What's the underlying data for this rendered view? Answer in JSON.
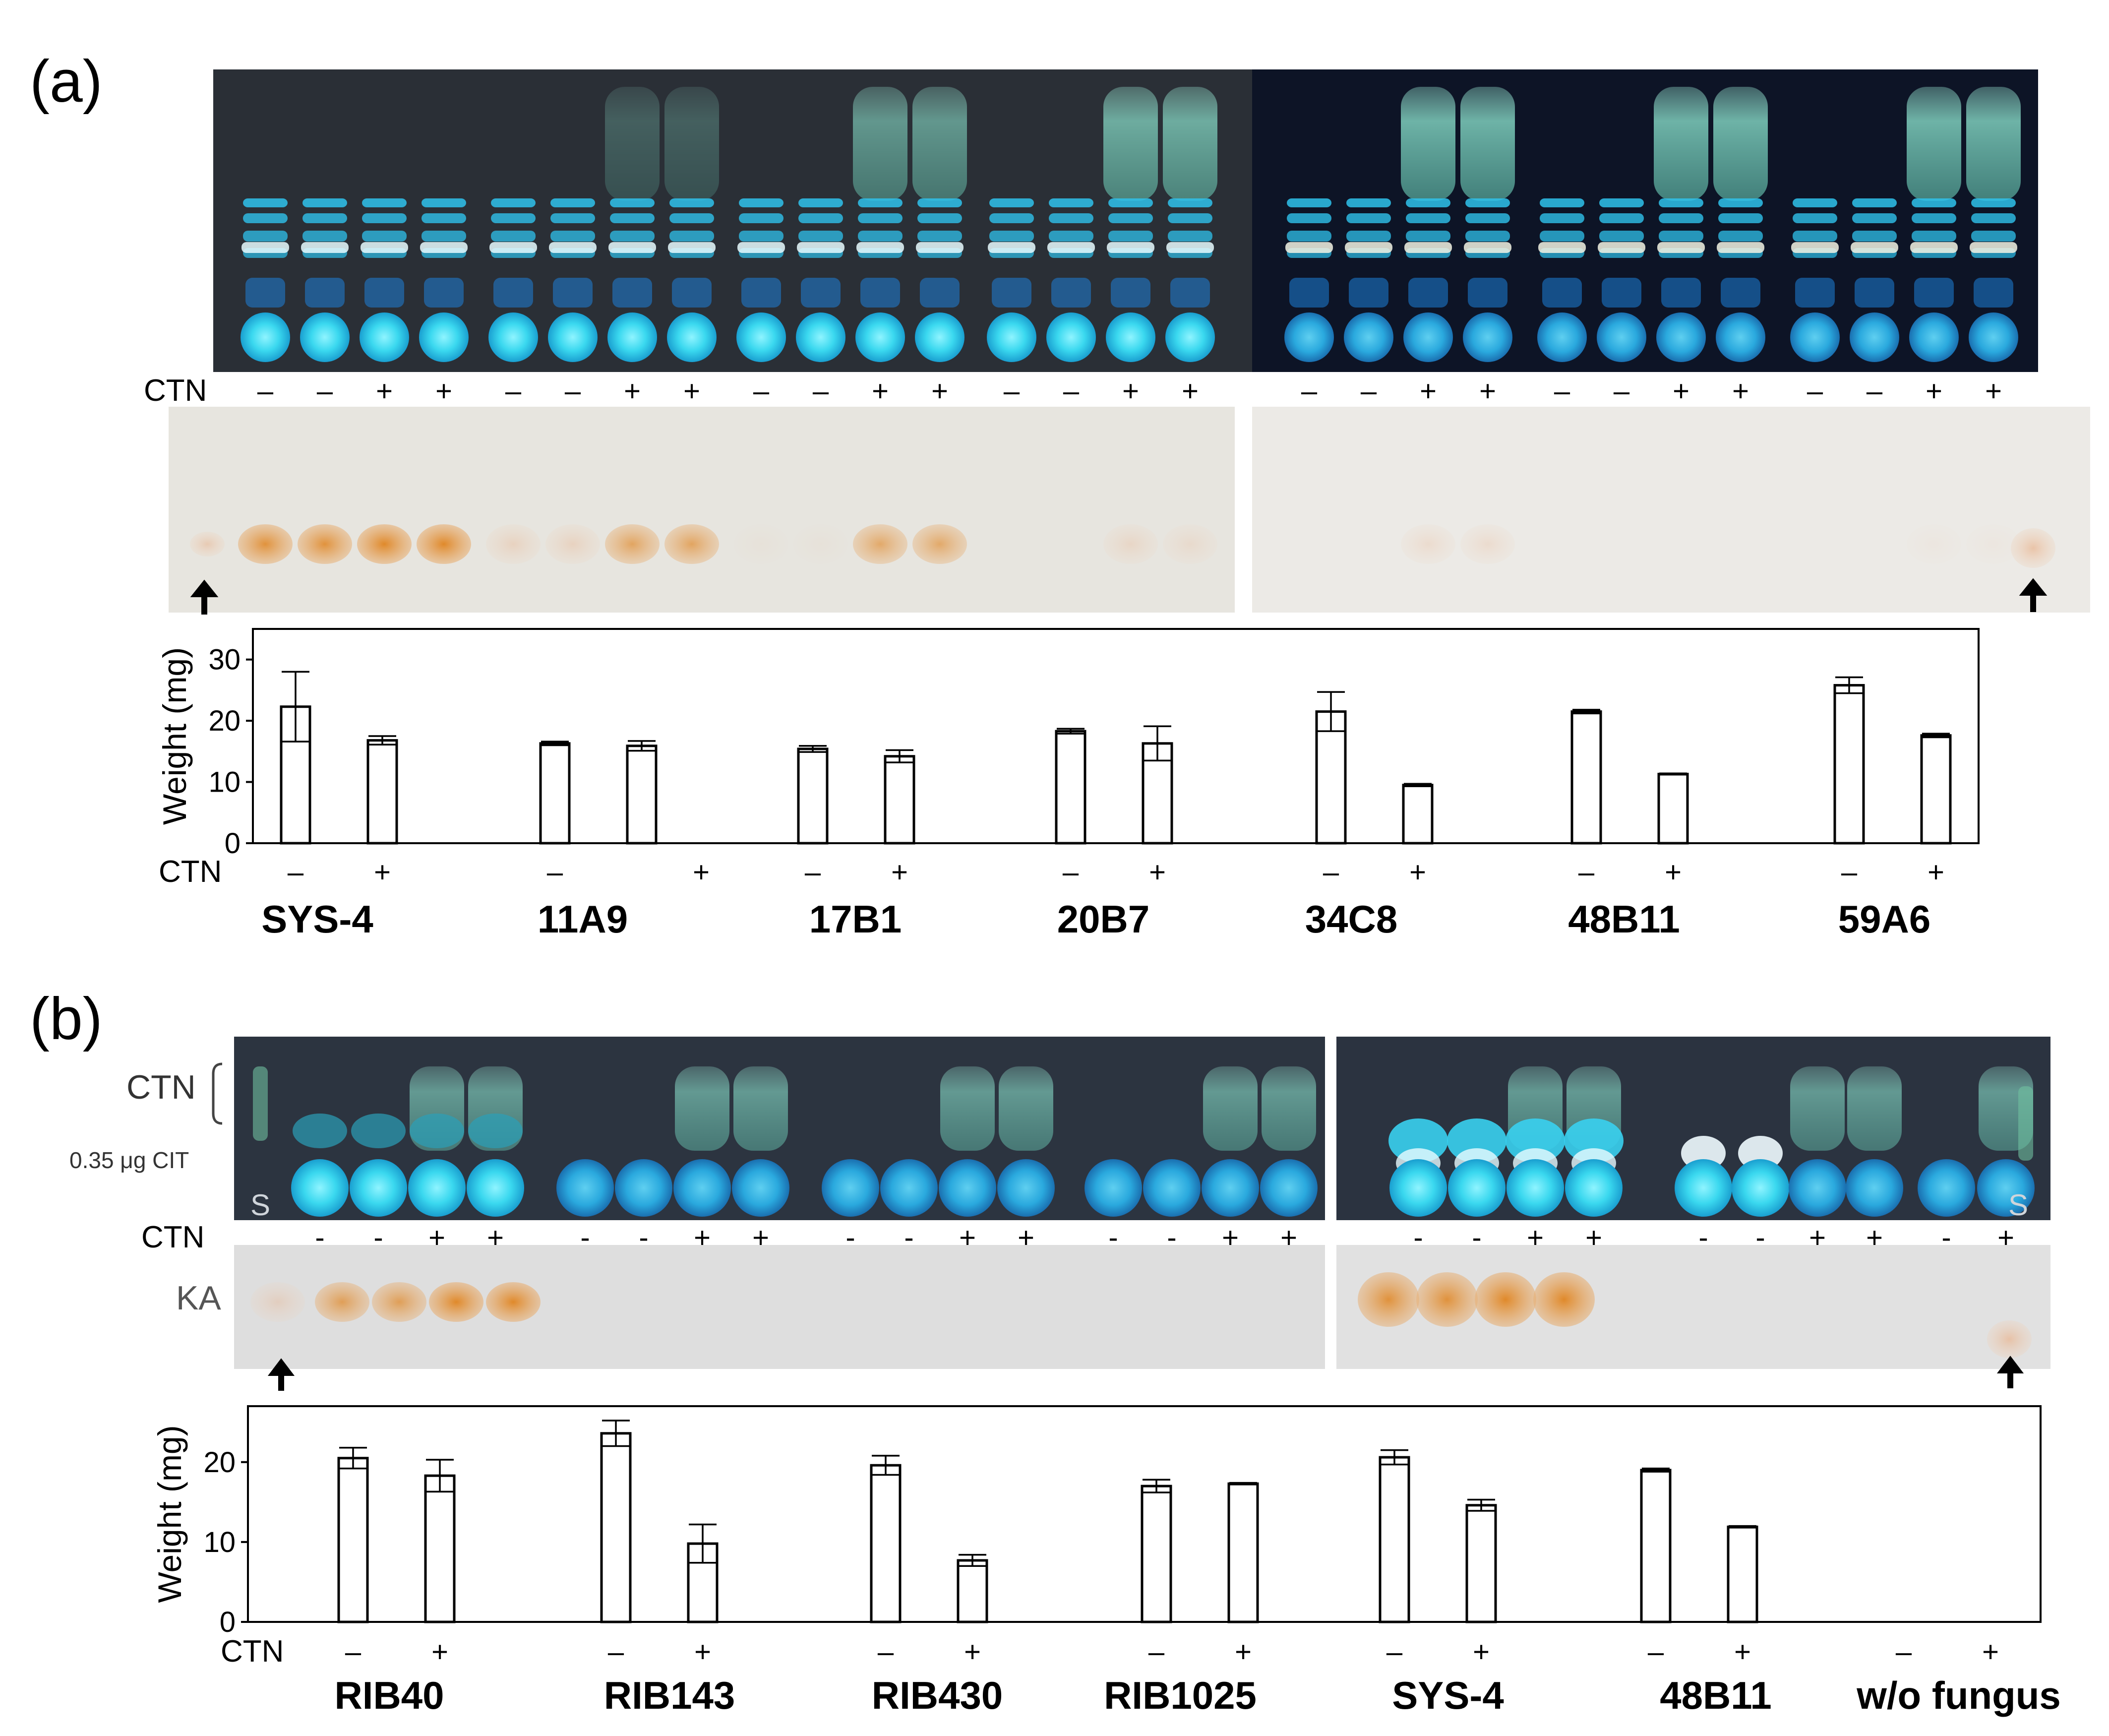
{
  "panel_a": {
    "label": "(a)",
    "ctn_label": "CTN",
    "tlc_lane_signs": [
      "–",
      "–",
      "+",
      "+",
      "–",
      "–",
      "+",
      "+",
      "–",
      "–",
      "+",
      "+",
      "–",
      "–",
      "+",
      "+",
      "–",
      "–",
      "+",
      "+",
      "–",
      "–",
      "+",
      "+",
      "–",
      "–",
      "+",
      "+"
    ],
    "colors": {
      "uv_plate": "#1c2430",
      "uv_spot": "#38d8f0",
      "ctn_smear": "#7fe0c8",
      "white_plate": "#e6e3dc",
      "ka_spot": "#d9882f"
    }
  },
  "panel_b": {
    "label": "(b)",
    "ctn_label": "CTN",
    "ctn_bracket_label": "CTN",
    "cit_label": "0.35 μg CIT",
    "standard_label": "S",
    "ka_label": "KA",
    "tlc_lane_signs": [
      "-",
      "-",
      "+",
      "+",
      "-",
      "-",
      "+",
      "+",
      "-",
      "-",
      "+",
      "+",
      "-",
      "-",
      "+",
      "+",
      "-",
      "-",
      "+",
      "+",
      "-",
      "-",
      "+",
      "+",
      "-",
      "+"
    ]
  },
  "chart_data": [
    {
      "type": "bar",
      "panel": "(a)",
      "ylabel": "Weight (mg)",
      "ylim": [
        0,
        35
      ],
      "yticks": [
        0,
        10,
        20,
        30
      ],
      "condition_label": "CTN",
      "categories": [
        "SYS-4",
        "11A9",
        "17B1",
        "20B7",
        "34C8",
        "48B11",
        "59A6"
      ],
      "series": [
        {
          "name": "–",
          "values": [
            22.3,
            16.3,
            15.4,
            18.3,
            21.5,
            21.5,
            25.8
          ],
          "errors": [
            5.7,
            0.3,
            0.5,
            0.4,
            3.2,
            0.3,
            1.3
          ]
        },
        {
          "name": "+",
          "values": [
            16.8,
            15.9,
            14.2,
            16.3,
            9.5,
            11.3,
            17.6
          ],
          "errors": [
            0.7,
            0.8,
            1.0,
            2.8,
            0.2,
            0.1,
            0.3
          ]
        }
      ],
      "condition_signs_below": [
        [
          "–",
          "+"
        ],
        [
          "–",
          "+"
        ],
        [
          "–",
          "+"
        ],
        [
          "–",
          "+"
        ],
        [
          "–",
          "+"
        ],
        [
          "–",
          "+"
        ],
        [
          "–",
          "+"
        ]
      ],
      "grid": false
    },
    {
      "type": "bar",
      "panel": "(b)",
      "ylabel": "Weight (mg)",
      "ylim": [
        0,
        27
      ],
      "yticks": [
        0,
        10,
        20
      ],
      "condition_label": "CTN",
      "categories": [
        "RIB40",
        "RIB143",
        "RIB430",
        "RIB1025",
        "SYS-4",
        "48B11",
        "w/o fungus"
      ],
      "series": [
        {
          "name": "–",
          "values": [
            20.5,
            23.6,
            19.6,
            17.0,
            20.6,
            19.0,
            null
          ],
          "errors": [
            1.3,
            1.6,
            1.2,
            0.8,
            0.9,
            0.2,
            null
          ]
        },
        {
          "name": "+",
          "values": [
            18.3,
            9.8,
            7.7,
            17.3,
            14.6,
            11.9,
            null
          ],
          "errors": [
            2.0,
            2.4,
            0.7,
            0.1,
            0.7,
            0.1,
            null
          ]
        }
      ],
      "condition_signs_below": [
        [
          "–",
          "+"
        ],
        [
          "–",
          "+"
        ],
        [
          "–",
          "+"
        ],
        [
          "–",
          "+"
        ],
        [
          "–",
          "+"
        ],
        [
          "–",
          "+"
        ],
        [
          "–",
          "+"
        ]
      ],
      "grid": false
    }
  ]
}
